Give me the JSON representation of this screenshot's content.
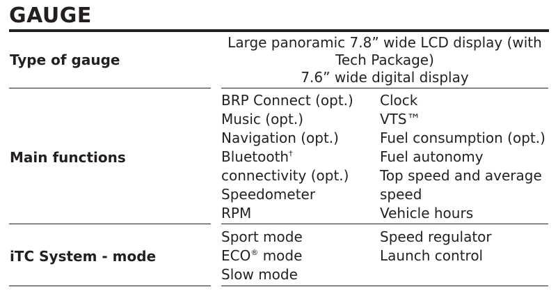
{
  "title": "GAUGE",
  "rows": [
    {
      "label": "Type of gauge",
      "lines": [
        "Large panoramic 7.8” wide LCD display (with",
        "Tech Package)",
        "7.6” wide digital display"
      ]
    },
    {
      "label": "Main functions",
      "col1": [
        "BRP Connect (opt.)",
        "Music (opt.)",
        "Navigation (opt.)",
        "Bluetooth",
        "connectivity (opt.)",
        "Speedometer",
        "RPM"
      ],
      "bluetooth_mark": "†",
      "col2": [
        "Clock",
        "VTS™",
        "Fuel consumption (opt.)",
        "Fuel autonomy",
        "Top speed and average",
        "speed",
        "Vehicle hours"
      ]
    },
    {
      "label": "iTC System - mode",
      "col1": [
        "Sport mode",
        "ECO",
        "Slow mode"
      ],
      "eco_mark": "®",
      "eco_suffix": " mode",
      "col2": [
        "Speed regulator",
        "Launch control"
      ]
    }
  ]
}
